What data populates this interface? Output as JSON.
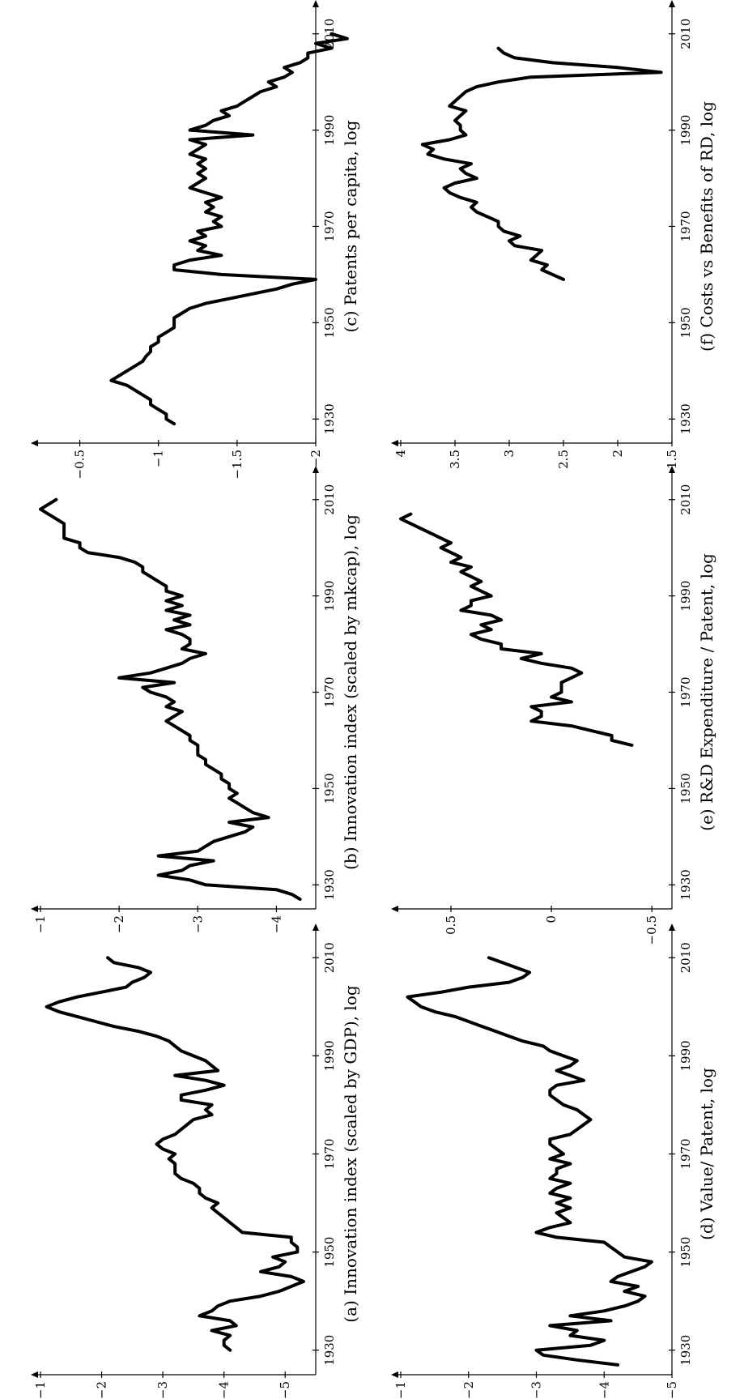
{
  "chart_data": [
    {
      "type": "line",
      "caption": "(a) Innovation index (scaled by GDP), log",
      "ylim": [
        -5.5,
        -1
      ],
      "yticks": [
        -1,
        -2,
        -3,
        -4,
        -5
      ],
      "ytick_labels": [
        "−1",
        "−2",
        "−3",
        "−4",
        "−5"
      ],
      "xlim": [
        1925,
        2015
      ],
      "xticks": [
        1930,
        1950,
        1970,
        1990,
        2010
      ],
      "xtick_labels": [
        "1930",
        "1950",
        "1970",
        "1990",
        "2010"
      ],
      "series": [
        {
          "x": [
            1930,
            1931,
            1932,
            1933,
            1934,
            1935,
            1936,
            1937,
            1938,
            1939,
            1940,
            1941,
            1942,
            1943,
            1944,
            1945,
            1946,
            1947,
            1948,
            1949,
            1950,
            1951,
            1952,
            1953,
            1954,
            1955,
            1956,
            1957,
            1958,
            1959,
            1960,
            1961,
            1962,
            1963,
            1964,
            1965,
            1966,
            1967,
            1968,
            1969,
            1970,
            1971,
            1972,
            1973,
            1974,
            1975,
            1976,
            1977,
            1978,
            1979,
            1980,
            1981,
            1982,
            1983,
            1984,
            1985,
            1986,
            1987,
            1988,
            1989,
            1990,
            1991,
            1992,
            1993,
            1994,
            1995,
            1996,
            1997,
            1998,
            1999,
            2000,
            2001,
            2002,
            2003,
            2004,
            2005,
            2006,
            2007,
            2008,
            2009,
            2010
          ],
          "y": [
            -4.1,
            -4.0,
            -4.0,
            -4.1,
            -3.8,
            -4.2,
            -4.1,
            -3.6,
            -3.8,
            -3.9,
            -4.1,
            -4.6,
            -4.9,
            -5.1,
            -5.3,
            -5.1,
            -4.6,
            -4.9,
            -5.0,
            -4.8,
            -5.2,
            -5.2,
            -5.1,
            -5.1,
            -4.3,
            -4.2,
            -4.1,
            -4.0,
            -3.9,
            -3.8,
            -3.9,
            -3.7,
            -3.6,
            -3.6,
            -3.5,
            -3.3,
            -3.2,
            -3.2,
            -3.2,
            -3.1,
            -3.2,
            -3.0,
            -2.9,
            -3.0,
            -3.2,
            -3.3,
            -3.4,
            -3.5,
            -3.8,
            -3.7,
            -3.8,
            -3.3,
            -3.3,
            -3.7,
            -4.0,
            -3.7,
            -3.2,
            -3.9,
            -3.8,
            -3.7,
            -3.5,
            -3.3,
            -3.2,
            -3.1,
            -2.9,
            -2.6,
            -2.2,
            -1.9,
            -1.6,
            -1.3,
            -1.1,
            -1.3,
            -1.6,
            -2.0,
            -2.4,
            -2.5,
            -2.7,
            -2.8,
            -2.6,
            -2.2,
            -2.1
          ]
        }
      ]
    },
    {
      "type": "line",
      "caption": "(b) Innovation index (scaled by mkcap), log",
      "ylim": [
        -4.5,
        -1
      ],
      "yticks": [
        -1,
        -2,
        -3,
        -4
      ],
      "ytick_labels": [
        "−1",
        "−2",
        "−3",
        "−4"
      ],
      "xlim": [
        1925,
        2015
      ],
      "xticks": [
        1930,
        1950,
        1970,
        1990,
        2010
      ],
      "xtick_labels": [
        "1930",
        "1950",
        "1970",
        "1990",
        "2010"
      ],
      "series": [
        {
          "x": [
            1927,
            1928,
            1929,
            1930,
            1931,
            1932,
            1933,
            1934,
            1935,
            1936,
            1937,
            1938,
            1939,
            1940,
            1941,
            1942,
            1943,
            1944,
            1945,
            1946,
            1947,
            1948,
            1949,
            1950,
            1951,
            1952,
            1953,
            1954,
            1955,
            1956,
            1957,
            1958,
            1959,
            1960,
            1961,
            1962,
            1963,
            1964,
            1965,
            1966,
            1967,
            1968,
            1969,
            1970,
            1971,
            1972,
            1973,
            1974,
            1975,
            1976,
            1977,
            1978,
            1979,
            1980,
            1981,
            1982,
            1983,
            1984,
            1985,
            1986,
            1987,
            1988,
            1989,
            1990,
            1991,
            1992,
            1993,
            1994,
            1995,
            1996,
            1997,
            1998,
            1999,
            2000,
            2001,
            2002,
            2003,
            2004,
            2005,
            2006,
            2007,
            2008,
            2009,
            2010
          ],
          "y": [
            -4.3,
            -4.2,
            -4.0,
            -3.1,
            -2.9,
            -2.5,
            -2.8,
            -2.9,
            -3.2,
            -2.5,
            -3.0,
            -3.1,
            -3.2,
            -3.4,
            -3.6,
            -3.7,
            -3.4,
            -3.9,
            -3.7,
            -3.6,
            -3.5,
            -3.4,
            -3.5,
            -3.4,
            -3.4,
            -3.3,
            -3.3,
            -3.2,
            -3.1,
            -3.1,
            -3.0,
            -3.0,
            -3.0,
            -2.9,
            -2.9,
            -2.8,
            -2.7,
            -2.6,
            -2.7,
            -2.8,
            -2.6,
            -2.7,
            -2.6,
            -2.4,
            -2.3,
            -2.7,
            -2.0,
            -2.4,
            -2.6,
            -2.8,
            -2.9,
            -3.1,
            -2.8,
            -2.9,
            -2.9,
            -2.8,
            -2.6,
            -2.9,
            -2.7,
            -2.9,
            -2.6,
            -2.8,
            -2.6,
            -2.8,
            -2.6,
            -2.6,
            -2.5,
            -2.4,
            -2.3,
            -2.3,
            -2.2,
            -2.0,
            -1.6,
            -1.5,
            -1.5,
            -1.3,
            -1.3,
            -1.3,
            -1.3,
            -1.2,
            -1.1,
            -1.0,
            -1.1,
            -1.2
          ]
        }
      ]
    },
    {
      "type": "line",
      "caption": "(c) Patents per capita, log",
      "ylim": [
        -2,
        -0.25
      ],
      "yticks": [
        -0.5,
        -1,
        -1.5,
        -2
      ],
      "ytick_labels": [
        "−0.5",
        "−1",
        "−1.5",
        "−2"
      ],
      "xlim": [
        1925,
        2015
      ],
      "xticks": [
        1930,
        1950,
        1970,
        1990,
        2010
      ],
      "xtick_labels": [
        "1930",
        "1950",
        "1970",
        "1990",
        "2010"
      ],
      "series": [
        {
          "x": [
            1929,
            1930,
            1931,
            1932,
            1933,
            1934,
            1935,
            1936,
            1937,
            1938,
            1939,
            1940,
            1941,
            1942,
            1943,
            1944,
            1945,
            1946,
            1947,
            1948,
            1949,
            1950,
            1951,
            1952,
            1953,
            1954,
            1955,
            1956,
            1957,
            1958,
            1959,
            1960,
            1961,
            1962,
            1963,
            1964,
            1965,
            1966,
            1967,
            1968,
            1969,
            1970,
            1971,
            1972,
            1973,
            1974,
            1975,
            1976,
            1977,
            1978,
            1979,
            1980,
            1981,
            1982,
            1983,
            1984,
            1985,
            1986,
            1987,
            1988,
            1989,
            1990,
            1991,
            1992,
            1993,
            1994,
            1995,
            1996,
            1997,
            1998,
            1999,
            2000,
            2001,
            2002,
            2003,
            2004,
            2005,
            2006,
            2007,
            2008,
            2009,
            2010
          ],
          "y": [
            -1.1,
            -1.05,
            -1.05,
            -1.0,
            -0.95,
            -0.95,
            -0.9,
            -0.85,
            -0.8,
            -0.7,
            -0.75,
            -0.8,
            -0.85,
            -0.9,
            -0.92,
            -0.95,
            -0.95,
            -1.0,
            -1.0,
            -1.05,
            -1.1,
            -1.1,
            -1.1,
            -1.15,
            -1.2,
            -1.3,
            -1.45,
            -1.6,
            -1.75,
            -1.85,
            -2.0,
            -1.4,
            -1.1,
            -1.1,
            -1.2,
            -1.4,
            -1.25,
            -1.3,
            -1.2,
            -1.3,
            -1.25,
            -1.4,
            -1.35,
            -1.4,
            -1.3,
            -1.35,
            -1.3,
            -1.4,
            -1.3,
            -1.2,
            -1.25,
            -1.3,
            -1.25,
            -1.3,
            -1.25,
            -1.3,
            -1.2,
            -1.25,
            -1.3,
            -1.2,
            -1.6,
            -1.2,
            -1.3,
            -1.35,
            -1.45,
            -1.4,
            -1.5,
            -1.55,
            -1.6,
            -1.65,
            -1.75,
            -1.7,
            -1.8,
            -1.85,
            -1.8,
            -1.9,
            -1.95,
            -1.95,
            -2.1,
            -2.0,
            -2.2,
            -2.1
          ]
        }
      ]
    },
    {
      "type": "line",
      "caption": "(d) Value/ Patent, log",
      "ylim": [
        -5,
        -1
      ],
      "yticks": [
        -1,
        -2,
        -3,
        -4,
        -5
      ],
      "ytick_labels": [
        "−1",
        "−2",
        "−3",
        "−4",
        "−5"
      ],
      "xlim": [
        1925,
        2015
      ],
      "xticks": [
        1930,
        1950,
        1970,
        1990,
        2010
      ],
      "xtick_labels": [
        "1930",
        "1950",
        "1970",
        "1990",
        "2010"
      ],
      "series": [
        {
          "x": [
            1927,
            1928,
            1929,
            1930,
            1931,
            1932,
            1933,
            1934,
            1935,
            1936,
            1937,
            1938,
            1939,
            1940,
            1941,
            1942,
            1943,
            1944,
            1945,
            1946,
            1947,
            1948,
            1949,
            1950,
            1951,
            1952,
            1953,
            1954,
            1955,
            1956,
            1957,
            1958,
            1959,
            1960,
            1961,
            1962,
            1963,
            1964,
            1965,
            1966,
            1967,
            1968,
            1969,
            1970,
            1971,
            1972,
            1973,
            1974,
            1975,
            1976,
            1977,
            1978,
            1979,
            1980,
            1981,
            1982,
            1983,
            1984,
            1985,
            1986,
            1987,
            1988,
            1989,
            1990,
            1991,
            1992,
            1993,
            1994,
            1995,
            1996,
            1997,
            1998,
            1999,
            2000,
            2001,
            2002,
            2003,
            2004,
            2005,
            2006,
            2007,
            2008,
            2009,
            2010
          ],
          "y": [
            -4.2,
            -3.6,
            -3.1,
            -3.0,
            -3.8,
            -4.0,
            -3.5,
            -3.6,
            -3.2,
            -4.1,
            -3.5,
            -4.0,
            -4.3,
            -4.5,
            -4.6,
            -4.3,
            -4.5,
            -4.1,
            -4.2,
            -4.4,
            -4.6,
            -4.7,
            -4.3,
            -4.2,
            -4.1,
            -4.0,
            -3.3,
            -3.0,
            -3.2,
            -3.5,
            -3.4,
            -3.3,
            -3.5,
            -3.3,
            -3.5,
            -3.2,
            -3.3,
            -3.5,
            -3.2,
            -3.3,
            -3.3,
            -3.5,
            -3.2,
            -3.4,
            -3.3,
            -3.2,
            -3.2,
            -3.5,
            -3.6,
            -3.7,
            -3.8,
            -3.7,
            -3.6,
            -3.4,
            -3.3,
            -3.2,
            -3.2,
            -3.3,
            -3.7,
            -3.5,
            -3.3,
            -3.5,
            -3.6,
            -3.4,
            -3.2,
            -3.1,
            -2.8,
            -2.6,
            -2.4,
            -2.2,
            -2.0,
            -1.8,
            -1.5,
            -1.3,
            -1.2,
            -1.1,
            -1.6,
            -2.0,
            -2.6,
            -2.8,
            -2.9,
            -2.7,
            -2.5,
            -2.3
          ]
        }
      ]
    },
    {
      "type": "line",
      "caption": "(e) R&D Expenditure / Patent, log",
      "ylim": [
        -0.6,
        0.75
      ],
      "yticks": [
        0.5,
        0,
        -0.5
      ],
      "ytick_labels": [
        "0.5",
        "0",
        "−0.5"
      ],
      "xlim": [
        1925,
        2015
      ],
      "xticks": [
        1930,
        1950,
        1970,
        1990,
        2010
      ],
      "xtick_labels": [
        "1930",
        "1950",
        "1970",
        "1990",
        "2010"
      ],
      "series": [
        {
          "x": [
            1959,
            1960,
            1961,
            1962,
            1963,
            1964,
            1965,
            1966,
            1967,
            1968,
            1969,
            1970,
            1971,
            1972,
            1973,
            1974,
            1975,
            1976,
            1977,
            1978,
            1979,
            1980,
            1981,
            1982,
            1983,
            1984,
            1985,
            1986,
            1987,
            1988,
            1989,
            1990,
            1991,
            1992,
            1993,
            1994,
            1995,
            1996,
            1997,
            1998,
            1999,
            2000,
            2001,
            2002,
            2003,
            2004,
            2005,
            2006,
            2007
          ],
          "y": [
            -0.4,
            -0.3,
            -0.3,
            -0.2,
            -0.1,
            0.1,
            0.05,
            0.05,
            0.1,
            -0.1,
            0.0,
            -0.05,
            -0.05,
            -0.05,
            -0.1,
            -0.15,
            -0.1,
            0.05,
            0.15,
            0.05,
            0.25,
            0.25,
            0.35,
            0.4,
            0.3,
            0.35,
            0.25,
            0.3,
            0.45,
            0.4,
            0.4,
            0.3,
            0.35,
            0.4,
            0.35,
            0.4,
            0.45,
            0.4,
            0.5,
            0.45,
            0.5,
            0.55,
            0.5,
            0.55,
            0.6,
            0.65,
            0.7,
            0.75,
            0.7
          ]
        }
      ]
    },
    {
      "type": "line",
      "caption": "(f) Costs vs Benefits of RD, log",
      "ylim": [
        1.5,
        4
      ],
      "yticks": [
        4,
        3.5,
        3,
        2.5,
        2,
        1.5
      ],
      "ytick_labels": [
        "4",
        "3.5",
        "3",
        "2.5",
        "2",
        "1.5"
      ],
      "xlim": [
        1925,
        2015
      ],
      "xticks": [
        1930,
        1950,
        1970,
        1990,
        2010
      ],
      "xtick_labels": [
        "1930",
        "1950",
        "1970",
        "1990",
        "2010"
      ],
      "series": [
        {
          "x": [
            1959,
            1960,
            1961,
            1962,
            1963,
            1964,
            1965,
            1966,
            1967,
            1968,
            1969,
            1970,
            1971,
            1972,
            1973,
            1974,
            1975,
            1976,
            1977,
            1978,
            1979,
            1980,
            1981,
            1982,
            1983,
            1984,
            1985,
            1986,
            1987,
            1988,
            1989,
            1990,
            1991,
            1992,
            1993,
            1994,
            1995,
            1996,
            1997,
            1998,
            1999,
            2000,
            2001,
            2002,
            2003,
            2004,
            2005,
            2006,
            2007
          ],
          "y": [
            2.5,
            2.6,
            2.7,
            2.65,
            2.8,
            2.75,
            2.7,
            2.95,
            3.0,
            2.9,
            3.05,
            3.1,
            3.1,
            3.2,
            3.3,
            3.35,
            3.3,
            3.45,
            3.55,
            3.6,
            3.5,
            3.3,
            3.4,
            3.45,
            3.35,
            3.6,
            3.75,
            3.7,
            3.8,
            3.55,
            3.4,
            3.45,
            3.45,
            3.5,
            3.45,
            3.4,
            3.55,
            3.5,
            3.45,
            3.4,
            3.3,
            3.1,
            2.8,
            1.6,
            2.0,
            2.6,
            2.95,
            3.05,
            3.1
          ]
        }
      ]
    }
  ]
}
